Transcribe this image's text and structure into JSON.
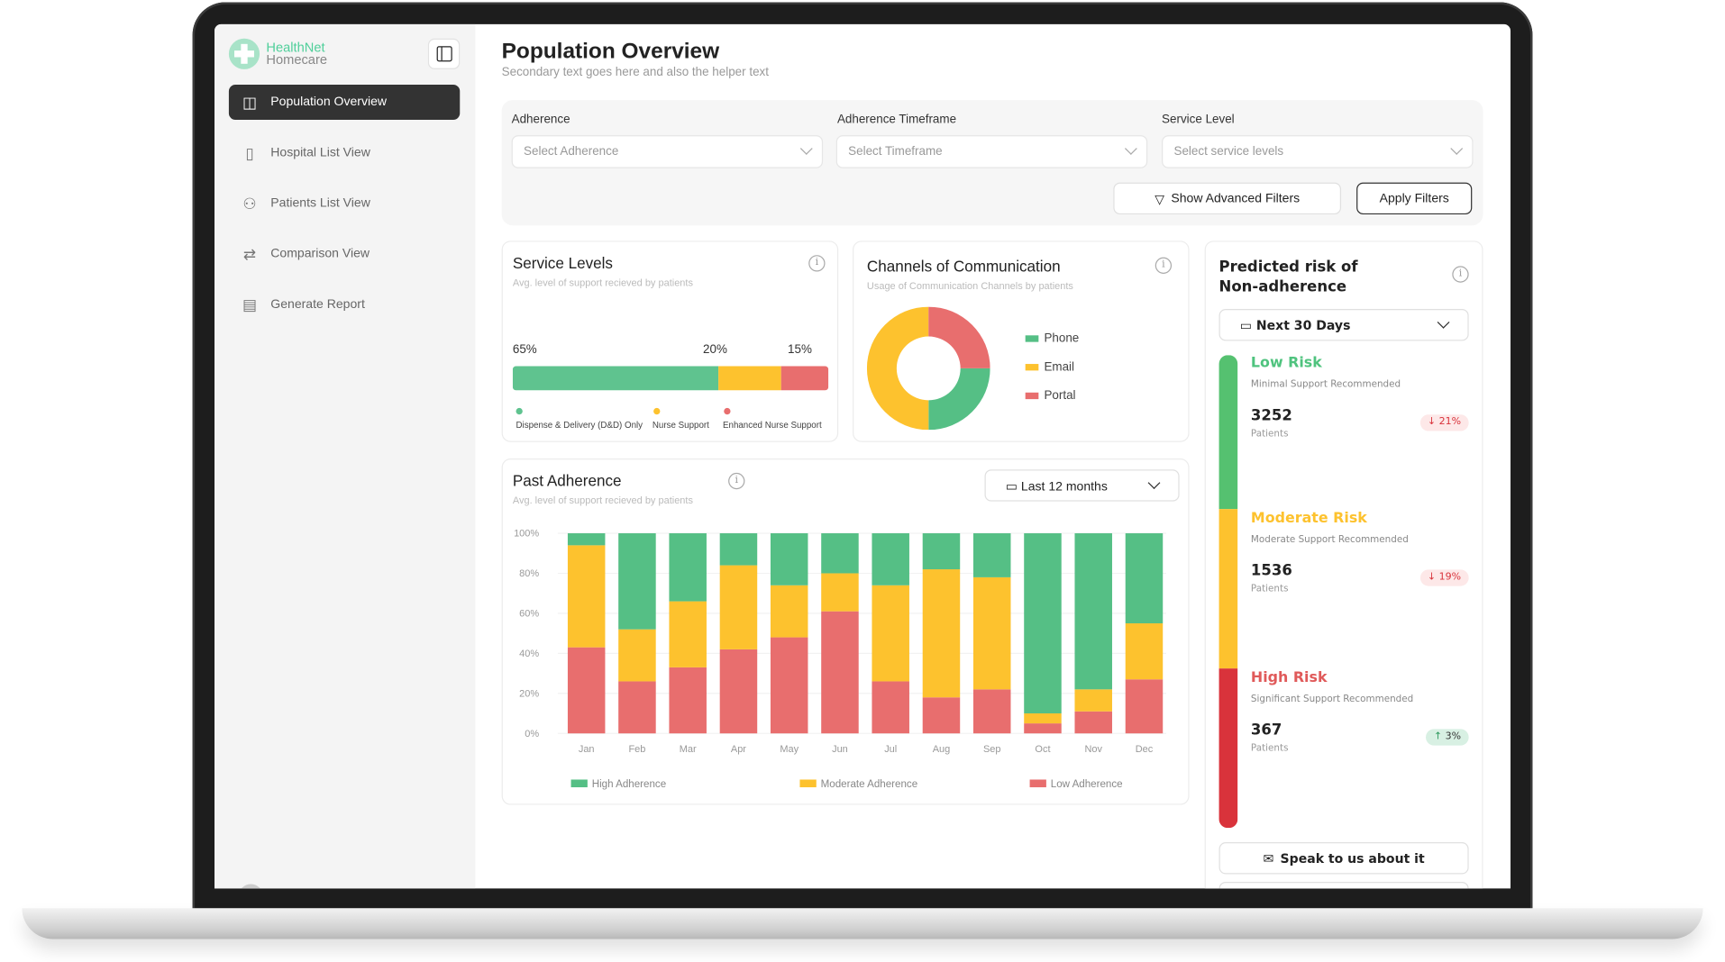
{
  "brand": {
    "line1": "HealthNet",
    "line2": "Homecare"
  },
  "sidebar": {
    "items": [
      {
        "label": "Population Overview",
        "icon": "grid-icon",
        "active": true
      },
      {
        "label": "Hospital List View",
        "icon": "building-icon"
      },
      {
        "label": "Patients List View",
        "icon": "users-icon"
      },
      {
        "label": "Comparison View",
        "icon": "compare-icon"
      },
      {
        "label": "Generate Report",
        "icon": "document-icon"
      }
    ]
  },
  "header": {
    "title": "Population Overview",
    "subtitle": "Secondary text goes here and also the helper text"
  },
  "filters": {
    "adherence": {
      "label": "Adherence",
      "placeholder": "Select Adherence"
    },
    "timeframe": {
      "label": "Adherence Timeframe",
      "placeholder": "Select Timeframe"
    },
    "service": {
      "label": "Service Level",
      "placeholder": "Select service levels"
    },
    "advanced_label": "Show Advanced Filters",
    "apply_label": "Apply Filters"
  },
  "service_levels": {
    "title": "Service Levels",
    "subtitle": "Avg. level of support recieved by patients",
    "segments": [
      {
        "label": "Dispense & Delivery (D&D) Only",
        "pct": "65%",
        "value": 65,
        "color": "#5fc38f"
      },
      {
        "label": "Nurse Support",
        "pct": "20%",
        "value": 20,
        "color": "#fdc22e"
      },
      {
        "label": "Enhanced Nurse Support",
        "pct": "15%",
        "value": 15,
        "color": "#e86e6e"
      }
    ]
  },
  "channels": {
    "title": "Channels of Communication",
    "subtitle": "Usage of Communication Channels by patients",
    "chart_data": {
      "type": "pie",
      "labels": [
        "Phone",
        "Email",
        "Portal"
      ],
      "values": [
        25,
        50,
        25
      ],
      "colors": [
        "#55bf85",
        "#fdc22e",
        "#e86e6e"
      ]
    }
  },
  "risk": {
    "title_line1": "Predicted risk of",
    "title_line2": "Non-adherence",
    "period": "Next 30 Days",
    "patients_label": "Patients",
    "levels": [
      {
        "name": "Low Risk",
        "desc": "Minimal Support Recommended",
        "count": "3252",
        "change": "21%",
        "dir": "down",
        "color": "#4fc37e"
      },
      {
        "name": "Moderate Risk",
        "desc": "Moderate Support Recommended",
        "count": "1536",
        "change": "19%",
        "dir": "down",
        "color": "#fdc22e"
      },
      {
        "name": "High Risk",
        "desc": "Significant Support Recommended",
        "count": "367",
        "change": "3%",
        "dir": "up",
        "color": "#e05a5a"
      }
    ],
    "speak_label": "Speak to us about it"
  },
  "past_adherence": {
    "title": "Past Adherence",
    "subtitle": "Avg. level of support recieved by patients",
    "period": "Last 12 months"
  },
  "chart_data": {
    "type": "bar",
    "stacked": true,
    "categories": [
      "Jan",
      "Feb",
      "Mar",
      "Apr",
      "May",
      "Jun",
      "Jul",
      "Aug",
      "Sep",
      "Oct",
      "Nov",
      "Dec"
    ],
    "series": [
      {
        "name": "Low Adherence",
        "color": "#e86e6e",
        "values": [
          43,
          26,
          33,
          42,
          48,
          61,
          26,
          18,
          22,
          5,
          11,
          27
        ]
      },
      {
        "name": "Moderate Adherence",
        "color": "#fdc22e",
        "values": [
          51,
          26,
          33,
          42,
          26,
          19,
          48,
          64,
          56,
          5,
          11,
          28
        ]
      },
      {
        "name": "High Adherence",
        "color": "#55bf85",
        "values": [
          6,
          48,
          34,
          16,
          26,
          20,
          26,
          18,
          22,
          90,
          78,
          45
        ]
      }
    ],
    "yticks": [
      "0%",
      "20%",
      "40%",
      "60%",
      "80%",
      "100%"
    ],
    "ylim": [
      0,
      100
    ],
    "legend": "bottom"
  }
}
